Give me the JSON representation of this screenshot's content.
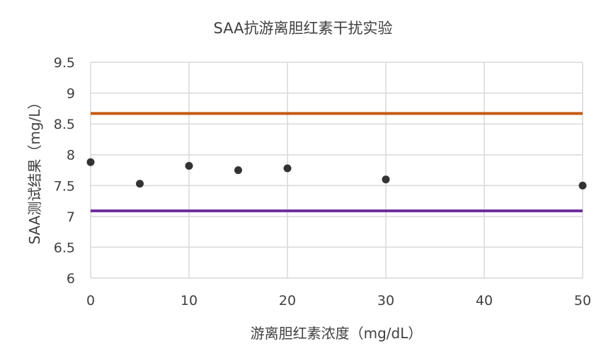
{
  "chart_data": {
    "type": "scatter",
    "title": "SAA抗游离胆红素干扰实验",
    "xlabel": "游离胆红素浓度（mg/dL）",
    "ylabel": "SAA测试结果（mg/L）",
    "xlim": [
      0,
      50
    ],
    "ylim": [
      6,
      9.5
    ],
    "xticks": [
      0,
      10,
      20,
      30,
      40,
      50
    ],
    "yticks": [
      6,
      6.5,
      7,
      7.5,
      8,
      8.5,
      9,
      9.5
    ],
    "grid": true,
    "series": [
      {
        "type": "scatter",
        "color": "#333333",
        "x": [
          0,
          5,
          10,
          15,
          20,
          30,
          50
        ],
        "y": [
          7.88,
          7.53,
          7.82,
          7.75,
          7.78,
          7.6,
          7.5
        ]
      }
    ],
    "reference_lines": [
      {
        "y": 8.67,
        "color": "#c55a11"
      },
      {
        "y": 7.09,
        "color": "#7030a0"
      }
    ]
  }
}
